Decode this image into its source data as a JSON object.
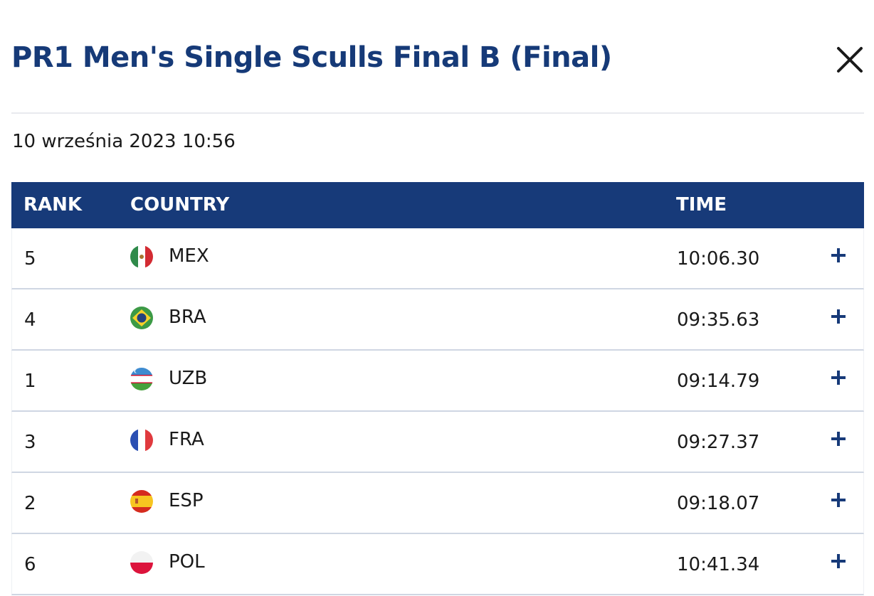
{
  "title": "PR1 Men's Single Sculls Final B (Final)",
  "date": "10 września 2023 10:56",
  "columns": {
    "rank": "RANK",
    "country": "COUNTRY",
    "time": "TIME"
  },
  "rows": [
    {
      "rank": "5",
      "country": "MEX",
      "flag": "mexico-flag-icon",
      "time": "10:06.30"
    },
    {
      "rank": "4",
      "country": "BRA",
      "flag": "brazil-flag-icon",
      "time": "09:35.63"
    },
    {
      "rank": "1",
      "country": "UZB",
      "flag": "uzbekistan-flag-icon",
      "time": "09:14.79"
    },
    {
      "rank": "3",
      "country": "FRA",
      "flag": "france-flag-icon",
      "time": "09:27.37"
    },
    {
      "rank": "2",
      "country": "ESP",
      "flag": "spain-flag-icon",
      "time": "09:18.07"
    },
    {
      "rank": "6",
      "country": "POL",
      "flag": "poland-flag-icon",
      "time": "10:41.34"
    }
  ],
  "icons": {
    "close": "close-icon",
    "expand": "plus-icon"
  },
  "colors": {
    "brand_navy": "#173a79",
    "title_navy": "#163a78",
    "divider": "#cfd6e3"
  }
}
